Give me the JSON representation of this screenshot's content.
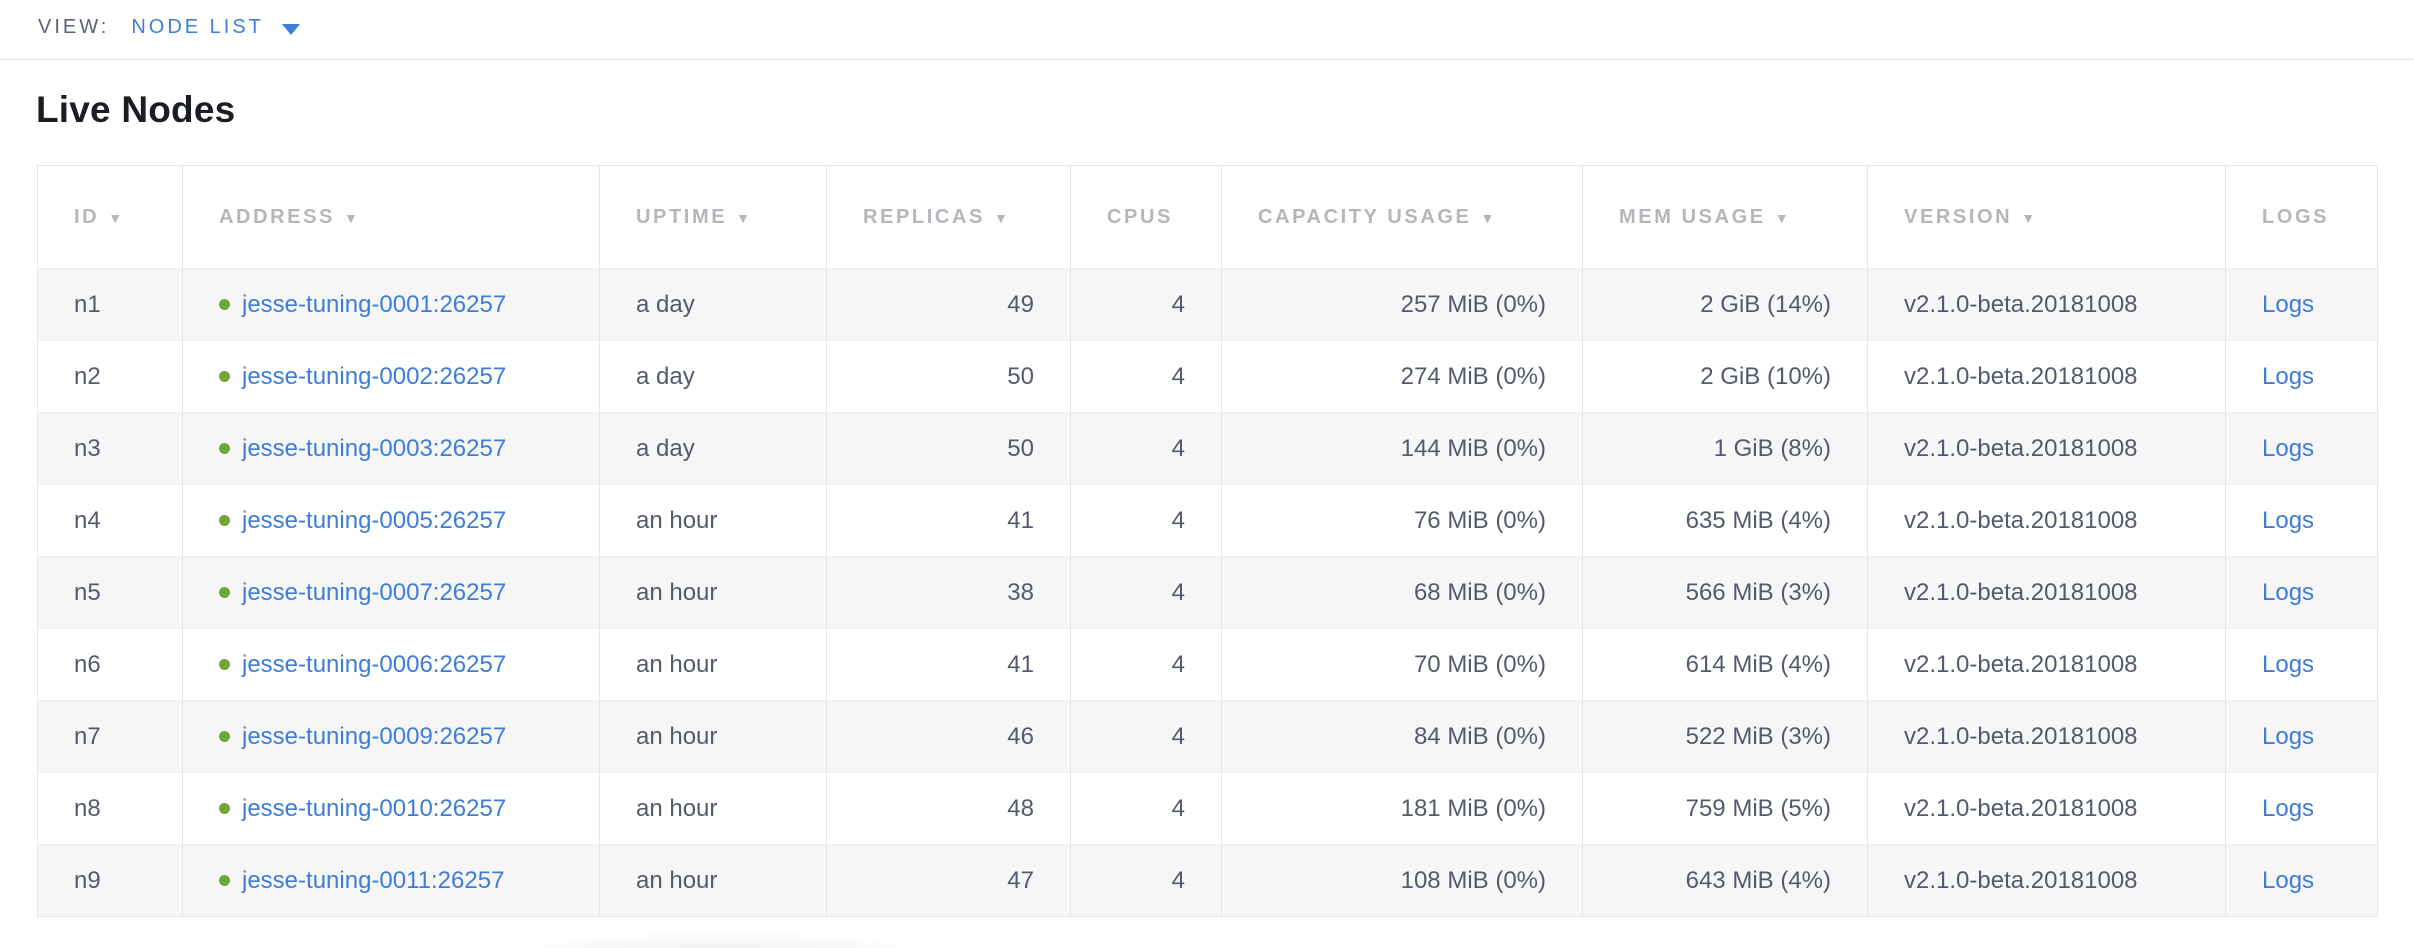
{
  "view_bar": {
    "label": "VIEW:",
    "selected": "NODE LIST"
  },
  "page": {
    "title": "Live Nodes"
  },
  "colors": {
    "accent_blue": "#3e7edb",
    "link_blue": "#3e7cd9",
    "node_live_green": "#74a43c",
    "header_gray": "#b3b6bb",
    "body_text": "#525a6c",
    "row_stripe": "#f6f6f6"
  },
  "table": {
    "columns": [
      {
        "key": "id",
        "label": "ID",
        "sortable": true,
        "align": "left"
      },
      {
        "key": "address",
        "label": "ADDRESS",
        "sortable": true,
        "align": "left"
      },
      {
        "key": "uptime",
        "label": "UPTIME",
        "sortable": true,
        "align": "left"
      },
      {
        "key": "replicas",
        "label": "REPLICAS",
        "sortable": true,
        "align": "right"
      },
      {
        "key": "cpus",
        "label": "CPUS",
        "sortable": false,
        "align": "right"
      },
      {
        "key": "capacity",
        "label": "CAPACITY USAGE",
        "sortable": true,
        "align": "right"
      },
      {
        "key": "mem",
        "label": "MEM USAGE",
        "sortable": true,
        "align": "right"
      },
      {
        "key": "version",
        "label": "VERSION",
        "sortable": true,
        "align": "left"
      },
      {
        "key": "logs",
        "label": "LOGS",
        "sortable": false,
        "align": "left"
      }
    ],
    "rows": [
      {
        "id": "n1",
        "status": "live",
        "address": "jesse-tuning-0001:26257",
        "uptime": "a day",
        "replicas": "49",
        "cpus": "4",
        "capacity": "257 MiB (0%)",
        "mem": "2 GiB (14%)",
        "version": "v2.1.0-beta.20181008",
        "logs": "Logs"
      },
      {
        "id": "n2",
        "status": "live",
        "address": "jesse-tuning-0002:26257",
        "uptime": "a day",
        "replicas": "50",
        "cpus": "4",
        "capacity": "274 MiB (0%)",
        "mem": "2 GiB (10%)",
        "version": "v2.1.0-beta.20181008",
        "logs": "Logs"
      },
      {
        "id": "n3",
        "status": "live",
        "address": "jesse-tuning-0003:26257",
        "uptime": "a day",
        "replicas": "50",
        "cpus": "4",
        "capacity": "144 MiB (0%)",
        "mem": "1 GiB (8%)",
        "version": "v2.1.0-beta.20181008",
        "logs": "Logs"
      },
      {
        "id": "n4",
        "status": "live",
        "address": "jesse-tuning-0005:26257",
        "uptime": "an hour",
        "replicas": "41",
        "cpus": "4",
        "capacity": "76 MiB (0%)",
        "mem": "635 MiB (4%)",
        "version": "v2.1.0-beta.20181008",
        "logs": "Logs"
      },
      {
        "id": "n5",
        "status": "live",
        "address": "jesse-tuning-0007:26257",
        "uptime": "an hour",
        "replicas": "38",
        "cpus": "4",
        "capacity": "68 MiB (0%)",
        "mem": "566 MiB (3%)",
        "version": "v2.1.0-beta.20181008",
        "logs": "Logs"
      },
      {
        "id": "n6",
        "status": "live",
        "address": "jesse-tuning-0006:26257",
        "uptime": "an hour",
        "replicas": "41",
        "cpus": "4",
        "capacity": "70 MiB (0%)",
        "mem": "614 MiB (4%)",
        "version": "v2.1.0-beta.20181008",
        "logs": "Logs"
      },
      {
        "id": "n7",
        "status": "live",
        "address": "jesse-tuning-0009:26257",
        "uptime": "an hour",
        "replicas": "46",
        "cpus": "4",
        "capacity": "84 MiB (0%)",
        "mem": "522 MiB (3%)",
        "version": "v2.1.0-beta.20181008",
        "logs": "Logs"
      },
      {
        "id": "n8",
        "status": "live",
        "address": "jesse-tuning-0010:26257",
        "uptime": "an hour",
        "replicas": "48",
        "cpus": "4",
        "capacity": "181 MiB (0%)",
        "mem": "759 MiB (5%)",
        "version": "v2.1.0-beta.20181008",
        "logs": "Logs"
      },
      {
        "id": "n9",
        "status": "live",
        "address": "jesse-tuning-0011:26257",
        "uptime": "an hour",
        "replicas": "47",
        "cpus": "4",
        "capacity": "108 MiB (0%)",
        "mem": "643 MiB (4%)",
        "version": "v2.1.0-beta.20181008",
        "logs": "Logs"
      }
    ]
  }
}
